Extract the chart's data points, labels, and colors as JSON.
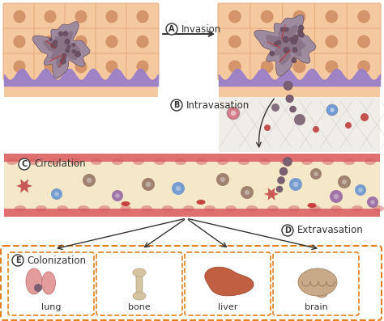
{
  "bg_color": "#ffffff",
  "tissue_cell_color": "#f5c9a0",
  "tissue_cell_border": "#e8a87c",
  "nucleus_color": "#d4956a",
  "basement_color": "#9b80c8",
  "tumor_outer_color": "#9e8a9e",
  "tumor_inner_color": "#7a6070",
  "tumor_cell_color": "#6a5060",
  "vessel_wall_color": "#e07070",
  "vessel_bump_color": "#d06060",
  "vessel_interior_color": "#f5e8c8",
  "ecm_line_color": "#c8c8c8",
  "arrow_color": "#333333",
  "red_blood_color": "#c03030",
  "blue_cell_color": "#6090d0",
  "purple_cell_color": "#9060a0",
  "brown_cell_color": "#907060",
  "pink_cell_color": "#d07080",
  "star_cell_color": "#c04040",
  "organ_box_color": "#e08020",
  "organ_label_color": "#333333",
  "text_invasion": "Invasion",
  "text_intravasation": "Intravasation",
  "text_circulation": "Circulation",
  "text_extravasation": "Extravasation",
  "text_colonization": "Colonization",
  "organ_labels": [
    "lung",
    "bone",
    "liver",
    "brain"
  ],
  "lung_color": "#e09090",
  "bone_color": "#d4c4a0",
  "liver_color": "#c06040",
  "brain_color": "#c8aa88"
}
